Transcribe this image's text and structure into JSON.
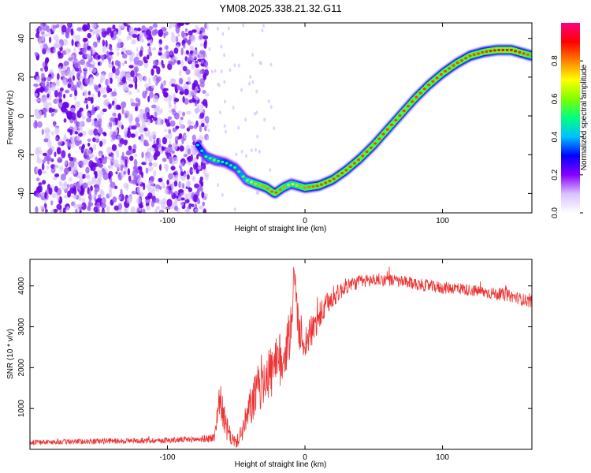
{
  "title": "YM08.2025.338.21.32.G11",
  "chart_data": [
    {
      "type": "heatmap",
      "title": "",
      "xlabel": "Height of straight line (km)",
      "ylabel": "Frequency (Hz)",
      "xlim": [
        -200,
        165
      ],
      "ylim": [
        -50,
        48
      ],
      "xticks": [
        -100,
        0,
        100
      ],
      "yticks": [
        -40,
        -20,
        0,
        20,
        40
      ],
      "noise_region_x": [
        -200,
        -75
      ],
      "ridge": {
        "x": [
          -78,
          -72,
          -65,
          -58,
          -50,
          -43,
          -36,
          -28,
          -22,
          -16,
          -10,
          -5,
          0,
          10,
          20,
          30,
          40,
          50,
          60,
          70,
          80,
          90,
          100,
          110,
          120,
          130,
          140,
          150,
          160,
          165
        ],
        "y": [
          -15,
          -21,
          -23,
          -24,
          -27,
          -33,
          -35,
          -37,
          -40,
          -37,
          -35,
          -36,
          -37,
          -36,
          -33,
          -28,
          -22,
          -15,
          -7,
          1,
          9,
          16,
          22,
          27,
          31,
          33,
          34,
          34,
          32,
          31
        ],
        "amplitude": [
          0.45,
          0.55,
          0.6,
          0.5,
          0.55,
          0.6,
          0.75,
          0.8,
          0.85,
          0.8,
          0.7,
          0.75,
          0.8,
          0.85,
          0.85,
          0.85,
          0.85,
          0.85,
          0.85,
          0.85,
          0.85,
          0.85,
          0.85,
          0.85,
          0.85,
          0.85,
          0.9,
          0.9,
          0.85,
          0.8
        ]
      },
      "colorbar": {
        "label": "Normalized spectral amplitude",
        "range": [
          0.0,
          1.0
        ],
        "ticks": [
          "0.0",
          "0.2",
          "0.4",
          "0.6",
          "0.8"
        ],
        "colors": [
          "#ffffff",
          "#d9c2ff",
          "#8800ff",
          "#0000ff",
          "#00c0ff",
          "#00ff80",
          "#80ff00",
          "#ffff00",
          "#ff8000",
          "#ff0000",
          "#ff0080"
        ]
      }
    },
    {
      "type": "line",
      "title": "",
      "xlabel": "Height of straight line (km)",
      "ylabel": "SNR (10 * v/v)",
      "xlim": [
        -200,
        165
      ],
      "ylim": [
        0,
        4650
      ],
      "xticks": [
        -100,
        0,
        100
      ],
      "yticks": [
        1000,
        2000,
        3000,
        4000
      ],
      "series": [
        {
          "name": "SNR",
          "color": "#ee3333",
          "x": [
            -200,
            -150,
            -100,
            -75,
            -66,
            -62,
            -58,
            -55,
            -50,
            -45,
            -40,
            -35,
            -30,
            -25,
            -20,
            -15,
            -10,
            -8,
            -5,
            0,
            5,
            10,
            15,
            20,
            25,
            30,
            35,
            40,
            50,
            60,
            70,
            80,
            90,
            100,
            110,
            120,
            130,
            140,
            150,
            160,
            165
          ],
          "y": [
            170,
            200,
            220,
            250,
            280,
            1300,
            600,
            350,
            150,
            500,
            1000,
            1400,
            1800,
            1900,
            2000,
            2400,
            2900,
            4500,
            3000,
            2600,
            2900,
            3200,
            3500,
            3700,
            3850,
            4000,
            4050,
            4100,
            4150,
            4150,
            4100,
            4050,
            4000,
            3950,
            3950,
            3900,
            3850,
            3800,
            3750,
            3650,
            3600
          ],
          "noise": [
            60,
            70,
            70,
            80,
            120,
            400,
            350,
            250,
            120,
            300,
            500,
            600,
            700,
            700,
            750,
            800,
            700,
            200,
            500,
            450,
            400,
            350,
            300,
            250,
            220,
            200,
            180,
            170,
            160,
            150,
            150,
            150,
            150,
            150,
            150,
            150,
            150,
            150,
            150,
            150,
            150
          ]
        }
      ]
    }
  ]
}
